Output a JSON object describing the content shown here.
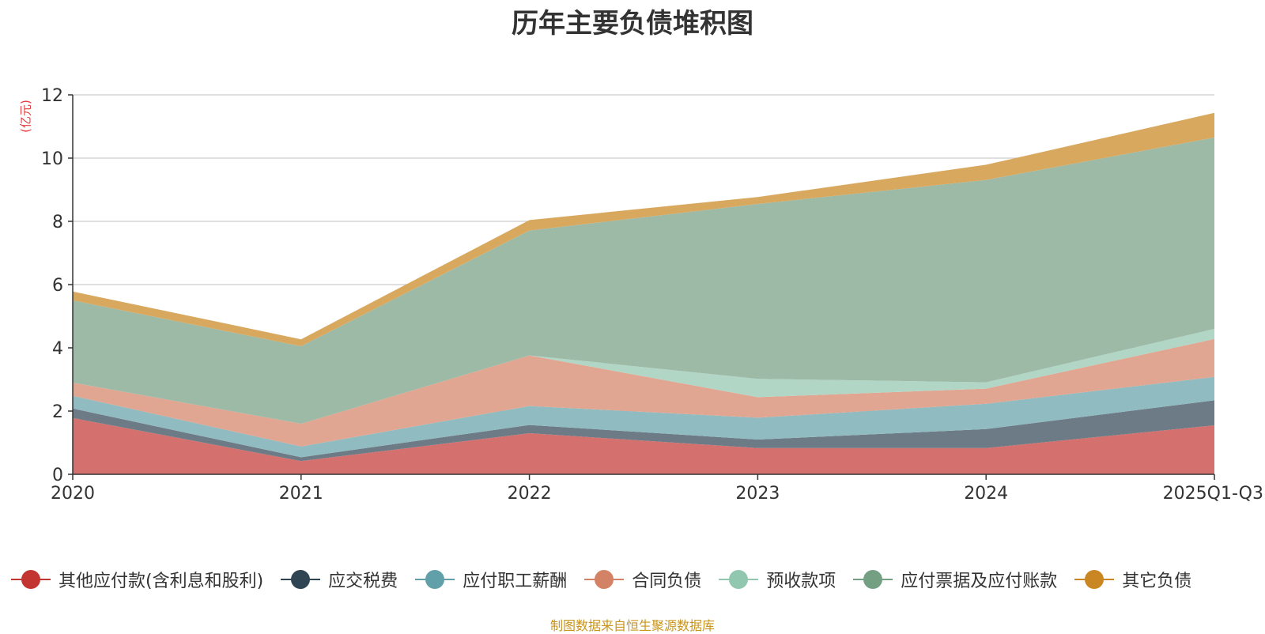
{
  "colors": {
    "title": "#333333",
    "unit": "#e8393c",
    "axis": "#333333",
    "grid": "#cccccc",
    "source": "#c8941c"
  },
  "chart_data": {
    "type": "area",
    "stacked": true,
    "title": "历年主要负债堆积图",
    "unit_label": "(亿元)",
    "categories": [
      "2020",
      "2021",
      "2022",
      "2023",
      "2024",
      "2025Q1-Q3"
    ],
    "ylim": [
      0,
      12
    ],
    "yticks": [
      0,
      2,
      4,
      6,
      8,
      10,
      12
    ],
    "grid": true,
    "legend_position": "bottom",
    "series": [
      {
        "name": "其他应付款(含利息和股利)",
        "color": "#c23531",
        "fill": "#d4706e",
        "values": [
          1.78,
          0.42,
          1.3,
          0.83,
          0.83,
          1.55
        ]
      },
      {
        "name": "应交税费",
        "color": "#2f4554",
        "fill": "#6c7b86",
        "values": [
          0.3,
          0.12,
          0.26,
          0.27,
          0.6,
          0.79
        ]
      },
      {
        "name": "应付职工薪酬",
        "color": "#61a0a8",
        "fill": "#90bbc0",
        "values": [
          0.4,
          0.34,
          0.6,
          0.69,
          0.8,
          0.74
        ]
      },
      {
        "name": "合同负债",
        "color": "#d48265",
        "fill": "#e0a691",
        "values": [
          0.42,
          0.72,
          1.6,
          0.65,
          0.48,
          1.2
        ]
      },
      {
        "name": "预收款项",
        "color": "#91c7ae",
        "fill": "#b1d6c5",
        "values": [
          0.0,
          0.0,
          0.0,
          0.58,
          0.2,
          0.32
        ]
      },
      {
        "name": "应付票据及应付账款",
        "color": "#749f83",
        "fill": "#9dbaa7",
        "values": [
          2.6,
          2.45,
          3.95,
          5.53,
          6.4,
          6.05
        ]
      },
      {
        "name": "其它负债",
        "color": "#ca8622",
        "fill": "#d9a85f",
        "values": [
          0.28,
          0.22,
          0.33,
          0.22,
          0.48,
          0.78
        ]
      }
    ]
  },
  "source_text": "制图数据来自恒生聚源数据库"
}
